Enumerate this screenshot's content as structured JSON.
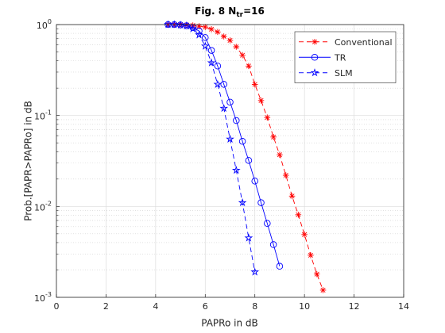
{
  "chart_data": {
    "type": "line",
    "title": [
      "Fig. 8 N",
      "tr",
      "=16"
    ],
    "xlabel": "PAPRo in dB",
    "ylabel": "Prob.[PAPR>PAPRo] in dB",
    "xlim": [
      0,
      14
    ],
    "xticks": [
      0,
      2,
      4,
      6,
      8,
      10,
      12,
      14
    ],
    "ylim": [
      0.001,
      1
    ],
    "yscale": "log",
    "yticks": [
      {
        "value": 0.001,
        "label": "10",
        "exponent": "-3"
      },
      {
        "value": 0.01,
        "label": "10",
        "exponent": "-2"
      },
      {
        "value": 0.1,
        "label": "10",
        "exponent": "-1"
      },
      {
        "value": 1,
        "label": "10",
        "exponent": "0"
      }
    ],
    "yminorticks": [
      0.002,
      0.003,
      0.004,
      0.005,
      0.006,
      0.007,
      0.008,
      0.009,
      0.02,
      0.03,
      0.04,
      0.05,
      0.06,
      0.07,
      0.08,
      0.09,
      0.2,
      0.3,
      0.4,
      0.5,
      0.6,
      0.7,
      0.8,
      0.9
    ],
    "grid": true,
    "minor_grid": true,
    "legend": "northeast",
    "series": [
      {
        "name": "Conventional",
        "color": "#ff0000",
        "linestyle": "dashed",
        "marker": "asterisk",
        "x": [
          4.5,
          4.75,
          5,
          5.25,
          5.5,
          5.75,
          6,
          6.25,
          6.5,
          6.75,
          7,
          7.25,
          7.5,
          7.75,
          8,
          8.25,
          8.5,
          8.75,
          9,
          9.25,
          9.5,
          9.75,
          10,
          10.25,
          10.5,
          10.75
        ],
        "values": [
          1,
          1,
          1,
          0.99,
          0.98,
          0.96,
          0.94,
          0.89,
          0.83,
          0.74,
          0.67,
          0.57,
          0.46,
          0.35,
          0.22,
          0.146,
          0.095,
          0.058,
          0.037,
          0.022,
          0.013,
          0.0081,
          0.0049,
          0.0029,
          0.0018,
          0.0012
        ]
      },
      {
        "name": "TR",
        "color": "#0000ff",
        "linestyle": "solid",
        "marker": "circle",
        "x": [
          4.5,
          4.75,
          5,
          5.25,
          5.5,
          5.75,
          6,
          6.25,
          6.5,
          6.75,
          7,
          7.25,
          7.5,
          7.75,
          8,
          8.25,
          8.5,
          8.75,
          9
        ],
        "values": [
          1,
          1,
          0.99,
          0.97,
          0.93,
          0.85,
          0.72,
          0.52,
          0.35,
          0.22,
          0.14,
          0.088,
          0.052,
          0.032,
          0.019,
          0.011,
          0.0065,
          0.0038,
          0.0022
        ]
      },
      {
        "name": "SLM",
        "color": "#0000ff",
        "linestyle": "dashed",
        "marker": "pentagram",
        "x": [
          4.5,
          4.75,
          5,
          5.25,
          5.5,
          5.75,
          6,
          6.25,
          6.5,
          6.75,
          7,
          7.25,
          7.5,
          7.75,
          8
        ],
        "values": [
          1,
          1,
          0.99,
          0.97,
          0.9,
          0.77,
          0.58,
          0.38,
          0.22,
          0.12,
          0.055,
          0.025,
          0.011,
          0.0045,
          0.0019
        ]
      }
    ]
  }
}
